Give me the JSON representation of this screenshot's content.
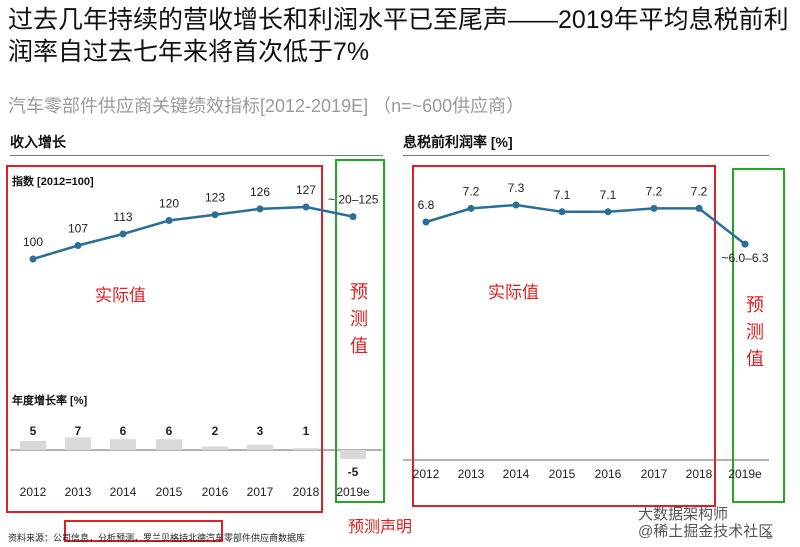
{
  "title": "过去几年持续的营收增长和利润水平已至尾声——2019年平均息税前利润率自过去七年来将首次低于7%",
  "subtitle": "汽车零部件供应商关键绩效指标[2012-2019E] （n=~600供应商）",
  "footnote": "资料来源：公司信息，分析预测，罗兰贝格持北德汽车零部件供应商数据库",
  "watermark": {
    "line1": "大数据架构师",
    "line2": "@稀土掘金技术社区"
  },
  "page_number": "6",
  "annotations": {
    "actual": "实际值",
    "forecast_c1": "预",
    "forecast_c2": "测",
    "forecast_c3": "值",
    "forecast_statement": "预测声明"
  },
  "colors": {
    "line": "#2a6f97",
    "red_box": "#e02020",
    "green_box": "#22aa22",
    "bar": "#d9d9d9",
    "annotation": "#e02020"
  },
  "chart_data": [
    {
      "type": "line",
      "panel_title": "收入增长",
      "ylabel": "指数 [2012=100]",
      "categories": [
        "2012",
        "2013",
        "2014",
        "2015",
        "2016",
        "2017",
        "2018",
        "2019e"
      ],
      "values": [
        100,
        107,
        113,
        120,
        123,
        126,
        127,
        122
      ],
      "labels": [
        "100",
        "107",
        "113",
        "120",
        "123",
        "126",
        "127",
        "~ 20–125"
      ],
      "ylim": [
        80,
        145
      ]
    },
    {
      "type": "bar",
      "title": "年度增长率 [%]",
      "categories": [
        "2012",
        "2013",
        "2014",
        "2015",
        "2016",
        "2017",
        "2018",
        "2019e"
      ],
      "values": [
        5,
        7,
        6,
        6,
        2,
        3,
        1,
        -5
      ],
      "labels": [
        "5",
        "7",
        "6",
        "6",
        "2",
        "3",
        "1",
        "-5"
      ]
    },
    {
      "type": "line",
      "panel_title": "息税前利润率 [%]",
      "categories": [
        "2012",
        "2013",
        "2014",
        "2015",
        "2016",
        "2017",
        "2018",
        "2019e"
      ],
      "values": [
        6.8,
        7.2,
        7.3,
        7.1,
        7.1,
        7.2,
        7.2,
        6.15
      ],
      "labels": [
        "6.8",
        "7.2",
        "7.3",
        "7.1",
        "7.1",
        "7.2",
        "7.2",
        "~6.0–6.3"
      ],
      "ylim": [
        4.5,
        8.2
      ]
    }
  ]
}
